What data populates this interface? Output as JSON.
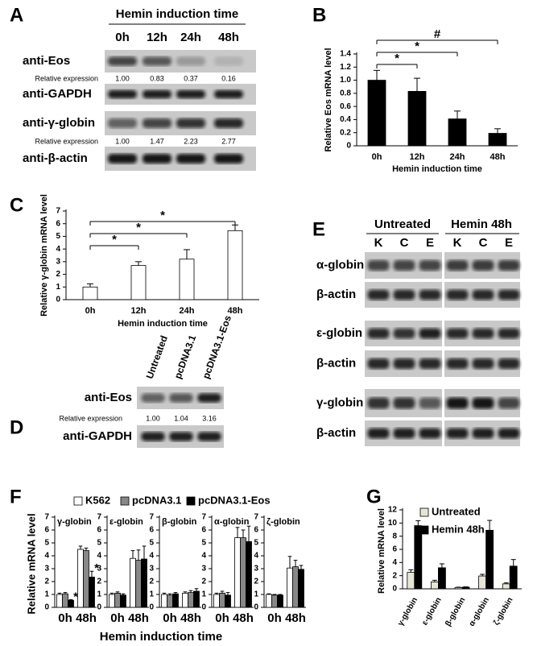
{
  "blots": [
    {
      "panel_label": "A",
      "title": "Hemin induction time",
      "lanes": [
        "0h",
        "12h",
        "24h",
        "48h"
      ],
      "rows": [
        {
          "label": "anti-Eos"
        },
        {
          "label": "Relative expression",
          "values": [
            "1.00",
            "0.83",
            "0.37",
            "0.16"
          ]
        },
        {
          "label": "anti-GAPDH"
        },
        {
          "label": "anti-γ-globin"
        },
        {
          "label": "Relative expression",
          "values": [
            "1.00",
            "1.47",
            "2.23",
            "2.77"
          ]
        },
        {
          "label": "anti-β-actin"
        }
      ]
    },
    {
      "panel_label": "D",
      "lanes": [
        "Untreated",
        "pcDNA3.1",
        "pcDNA3.1-Eos"
      ],
      "rows": [
        {
          "label": "anti-Eos"
        },
        {
          "label": "Relative expression",
          "values": [
            "1.00",
            "1.04",
            "3.16"
          ]
        },
        {
          "label": "anti-GAPDH"
        }
      ]
    },
    {
      "panel_label": "E",
      "groups": [
        "Untreated",
        "Hemin 48h"
      ],
      "lanes": [
        "K",
        "C",
        "E",
        "K",
        "C",
        "E"
      ],
      "rows": [
        {
          "label": "α-globin"
        },
        {
          "label": "β-actin"
        },
        {
          "label": "ε-globin"
        },
        {
          "label": "β-actin"
        },
        {
          "label": "γ-globin"
        },
        {
          "label": "β-actin"
        }
      ]
    }
  ],
  "chart_data": [
    {
      "type": "bar",
      "panel_label": "B",
      "y_label": "Relative Eos mRNA level",
      "x_label": "Hemin induction time",
      "categories": [
        "0h",
        "12h",
        "24h",
        "48h"
      ],
      "values": [
        1.0,
        0.83,
        0.41,
        0.19
      ],
      "errors": [
        0.15,
        0.2,
        0.12,
        0.07
      ],
      "color": "#000000",
      "ylim": [
        0,
        1.4
      ],
      "yticks": [
        0,
        0.2,
        0.4,
        0.6,
        0.8,
        {
          "value": 1,
          "label": "1.0"
        },
        1.2,
        1.4
      ],
      "brackets": [
        {
          "from": 0,
          "to": 1,
          "label": "*"
        },
        {
          "from": 0,
          "to": 2,
          "label": "*"
        },
        {
          "from": 0,
          "to": 3,
          "label": "#"
        }
      ]
    },
    {
      "type": "bar",
      "panel_label": "C",
      "y_label": "Relative γ-globin mRNA level",
      "x_label": "Hemin induction time",
      "categories": [
        "0h",
        "12h",
        "24h",
        "48h"
      ],
      "values": [
        1.0,
        2.7,
        3.2,
        5.45
      ],
      "errors": [
        0.25,
        0.3,
        0.75,
        0.45
      ],
      "color": "#ffffff",
      "ylim": [
        0,
        7
      ],
      "yticks": [
        0,
        1,
        2,
        3,
        4,
        5,
        6,
        7
      ],
      "brackets": [
        {
          "from": 0,
          "to": 1,
          "label": "*"
        },
        {
          "from": 0,
          "to": 2,
          "label": "*"
        },
        {
          "from": 0,
          "to": 3,
          "label": "*"
        }
      ]
    },
    {
      "type": "bar-multiples",
      "panel_label": "F",
      "y_label": "Relative mRNA level",
      "x_label": "Hemin induction time",
      "ylim": [
        0,
        7
      ],
      "yticks": [
        0,
        1,
        2,
        3,
        4,
        5,
        6,
        7
      ],
      "series": [
        {
          "name": "K562",
          "color": "#ffffff"
        },
        {
          "name": "pcDNA3.1",
          "color": "#888888"
        },
        {
          "name": "pcDNA3.1-Eos",
          "color": "#000000"
        }
      ],
      "subplots": [
        {
          "title": "γ-globin",
          "categories": [
            "0h",
            "48h"
          ],
          "series": [
            {
              "values": [
                1.0,
                4.5
              ],
              "errors": [
                0.1,
                0.25
              ]
            },
            {
              "values": [
                1.05,
                4.4
              ],
              "errors": [
                0.1,
                0.2
              ]
            },
            {
              "values": [
                0.55,
                2.35
              ],
              "errors": [
                0.05,
                0.45
              ],
              "annotations": [
                "*",
                "*"
              ]
            }
          ]
        },
        {
          "title": "ε-globin",
          "categories": [
            "0h",
            "48h"
          ],
          "series": [
            {
              "values": [
                1.0,
                3.8
              ],
              "errors": [
                0.1,
                0.6
              ]
            },
            {
              "values": [
                1.1,
                3.65
              ],
              "errors": [
                0.1,
                0.8
              ]
            },
            {
              "values": [
                0.95,
                3.75
              ],
              "errors": [
                0.1,
                1.0
              ]
            }
          ]
        },
        {
          "title": "β-globin",
          "categories": [
            "0h",
            "48h"
          ],
          "series": [
            {
              "values": [
                1.0,
                1.1
              ],
              "errors": [
                0.1,
                0.1
              ]
            },
            {
              "values": [
                0.95,
                1.15
              ],
              "errors": [
                0.1,
                0.15
              ]
            },
            {
              "values": [
                1.05,
                1.25
              ],
              "errors": [
                0.1,
                0.2
              ]
            }
          ]
        },
        {
          "title": "α-globin",
          "categories": [
            "0h",
            "48h"
          ],
          "series": [
            {
              "values": [
                1.0,
                5.4
              ],
              "errors": [
                0.1,
                0.8
              ]
            },
            {
              "values": [
                1.1,
                5.4
              ],
              "errors": [
                0.15,
                0.6
              ]
            },
            {
              "values": [
                0.95,
                5.1
              ],
              "errors": [
                0.2,
                1.2
              ]
            }
          ]
        },
        {
          "title": "ζ-globin",
          "categories": [
            "0h",
            "48h"
          ],
          "series": [
            {
              "values": [
                1.0,
                3.05
              ],
              "errors": [
                0.05,
                0.9
              ]
            },
            {
              "values": [
                0.95,
                3.15
              ],
              "errors": [
                0.05,
                0.5
              ]
            },
            {
              "values": [
                0.95,
                2.95
              ],
              "errors": [
                0.05,
                0.3
              ]
            }
          ]
        }
      ]
    },
    {
      "type": "bar",
      "panel_label": "G",
      "y_label": "Relative mRNA level",
      "categories": [
        "γ-globin",
        "ε-globin",
        "β-globin",
        "α-globin",
        "ζ-globin"
      ],
      "series": [
        {
          "name": "Untreated",
          "color": "#e6e6d4",
          "values": [
            2.5,
            1.05,
            0.2,
            1.95,
            0.75
          ],
          "errors": [
            0.4,
            0.25,
            0.05,
            0.25,
            0.15
          ]
        },
        {
          "name": "Hemin 48h",
          "color": "#000000",
          "values": [
            9.6,
            3.2,
            0.25,
            8.9,
            3.45
          ],
          "errors": [
            0.75,
            0.6,
            0.05,
            1.5,
            1.0
          ]
        }
      ],
      "ylim": [
        0,
        12
      ],
      "yticks": [
        0,
        2,
        4,
        6,
        8,
        10,
        12
      ]
    }
  ]
}
